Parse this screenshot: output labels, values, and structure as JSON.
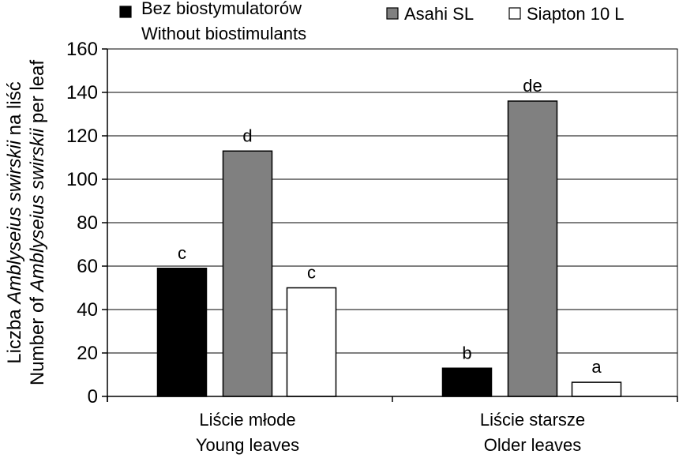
{
  "chart_data": {
    "type": "bar",
    "categories": [
      {
        "line1": "Liście młode",
        "line2": "Young leaves"
      },
      {
        "line1": "Liście starsze",
        "line2": "Older leaves"
      }
    ],
    "series": [
      {
        "name": "Bez biostymulatorów",
        "name_line2": "Without biostimulants",
        "color": "#000000",
        "values": [
          59,
          13
        ],
        "labels": [
          "c",
          "b"
        ]
      },
      {
        "name": "Asahi SL",
        "color": "#808080",
        "values": [
          113,
          136
        ],
        "labels": [
          "d",
          "de"
        ]
      },
      {
        "name": "Siapton 10 L",
        "color": "#ffffff",
        "values": [
          50,
          6.5
        ],
        "labels": [
          "c",
          "a"
        ]
      }
    ],
    "ylabel": {
      "line1_prefix": "Liczba ",
      "line1_species": "Amblyseius swirskii",
      "line1_suffix": " na liść",
      "line2_prefix": "Number of ",
      "line2_species": "Amblyseius swirskii",
      "line2_suffix": " per leaf"
    },
    "ylim": [
      0,
      160
    ],
    "yticks": [
      0,
      20,
      40,
      60,
      80,
      100,
      120,
      140,
      160
    ],
    "grid": "horizontal",
    "legend_position": "top"
  }
}
